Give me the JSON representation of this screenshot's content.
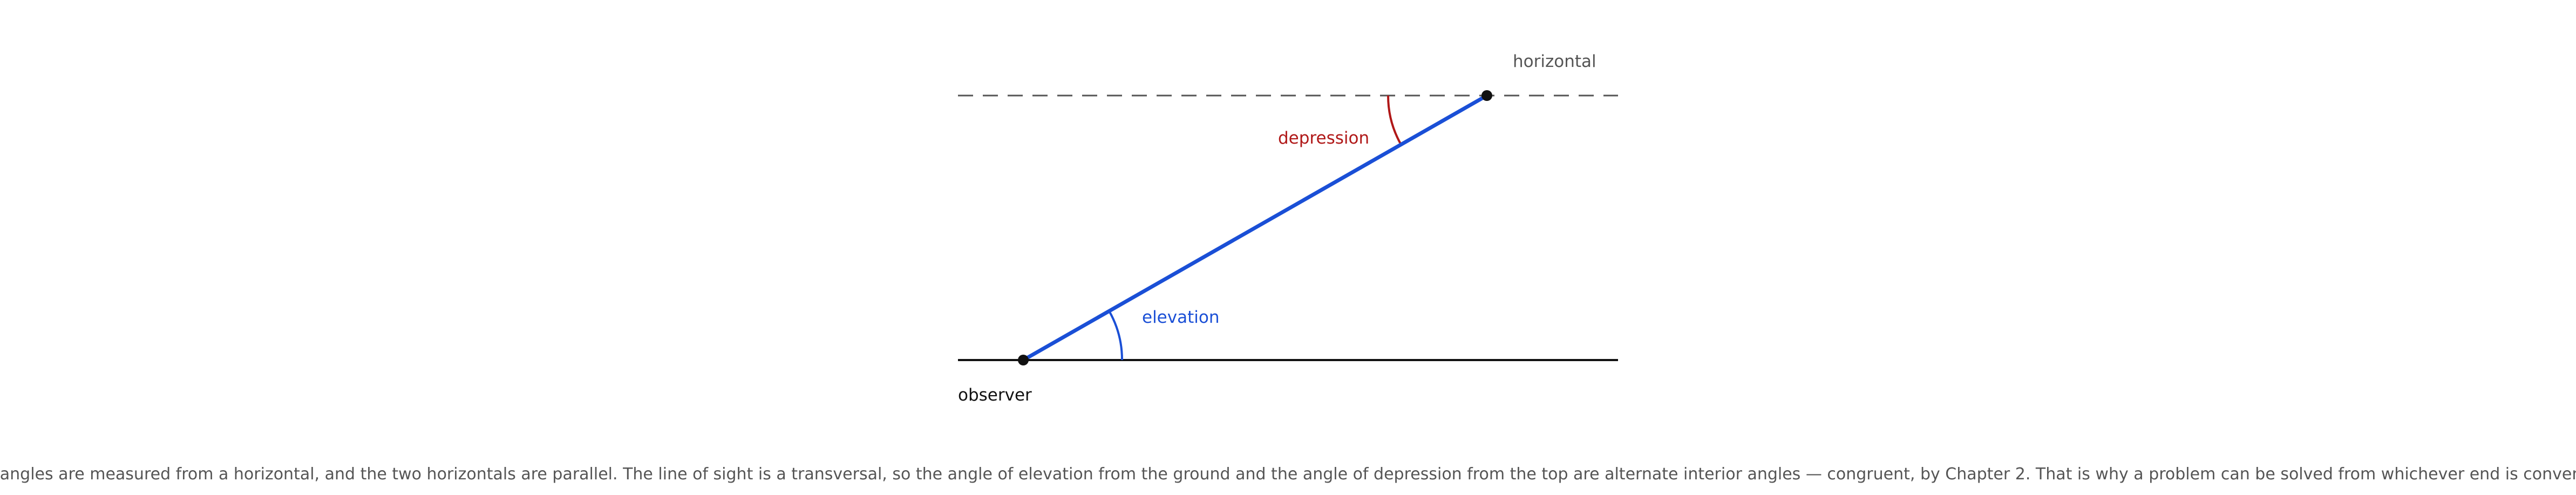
{
  "labels": {
    "horizontal": "horizontal",
    "depression": "depression",
    "elevation": "elevation",
    "observer": "observer"
  },
  "caption": "Both angles are measured from a horizontal, and the two horizontals are parallel. The line of sight is a transversal, so the angle of elevation from the ground and the angle of depression from the top are alternate interior angles — congruent, by Chapter 2. That is why a problem can be solved from whichever end is convenient."
}
